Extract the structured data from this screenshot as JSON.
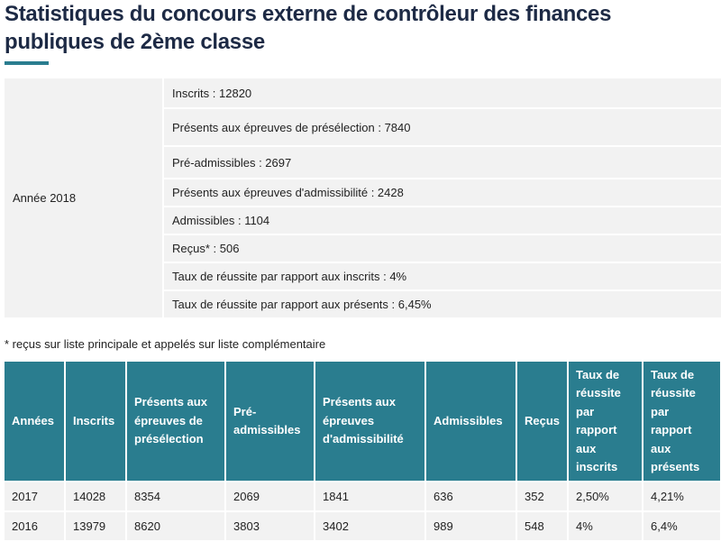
{
  "title": "Statistiques du concours externe de contrôleur des finances publiques de 2ème classe",
  "summary": {
    "year_label": "Année 2018",
    "items": [
      "Inscrits : 12820",
      "Présents aux épreuves de présélection : 7840",
      "Pré-admissibles : 2697",
      "Présents aux épreuves d'admissibilité : 2428",
      "Admissibles : 1104",
      "Reçus* : 506",
      "Taux de réussite par rapport aux inscrits : 4%",
      "Taux de réussite par rapport aux présents : 6,45%"
    ]
  },
  "footnote": "* reçus sur liste principale et appelés sur liste complémentaire",
  "table": {
    "headers": [
      "Années",
      "Inscrits",
      "Présents aux épreuves de présélection",
      "Pré-admissibles",
      "Présents aux épreuves d'admissibilité",
      "Admissibles",
      "Reçus",
      "Taux de réussite par rapport aux inscrits",
      "Taux de réussite par rapport aux présents"
    ],
    "rows": [
      [
        "2017",
        "14028",
        "8354",
        "2069",
        "1841",
        "636",
        "352",
        "2,50%",
        "4,21%"
      ],
      [
        "2016",
        "13979",
        "8620",
        "3803",
        "3402",
        "989",
        "548",
        "4%",
        "6,4%"
      ]
    ]
  },
  "colors": {
    "accent": "#2a7d8f",
    "title": "#1d2a45"
  }
}
